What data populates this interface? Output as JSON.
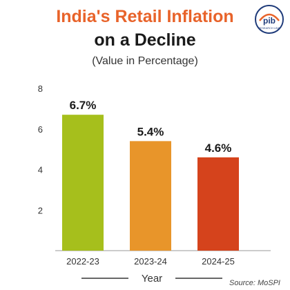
{
  "header": {
    "title_line1": "India's Retail Inflation",
    "title_line2": "on a Decline",
    "subtitle": "(Value in Percentage)"
  },
  "logo": {
    "icon": "pib-logo-icon",
    "text": "pib",
    "subtext": "RESEARCH UNIT"
  },
  "source": "Source: MoSPI",
  "chart_data": {
    "type": "bar",
    "title": "India's Retail Inflation on a Decline",
    "subtitle": "(Value in Percentage)",
    "xlabel": "Year",
    "ylabel": "",
    "categories": [
      "2022-23",
      "2023-24",
      "2024-25"
    ],
    "values": [
      6.7,
      5.4,
      4.6
    ],
    "value_labels": [
      "6.7%",
      "5.4%",
      "4.6%"
    ],
    "yticks": [
      2,
      4,
      6,
      8
    ],
    "ylim": [
      0,
      8
    ],
    "grid": false,
    "legend": "none",
    "colors": [
      "#a6bf1c",
      "#e8952a",
      "#d5431c"
    ]
  }
}
